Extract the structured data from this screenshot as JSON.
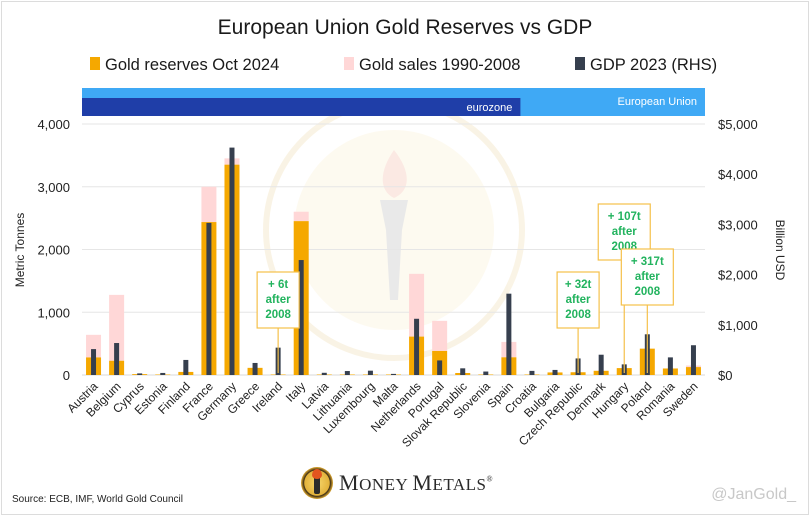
{
  "chart_data": {
    "type": "bar",
    "title": "European Union Gold Reserves vs GDP",
    "legend": [
      {
        "name": "Gold reserves Oct 2024",
        "color": "#f5a800"
      },
      {
        "name": "Gold sales 1990-2008",
        "color": "#ffd7d7"
      },
      {
        "name": "GDP 2023 (RHS)",
        "color": "#363f4e"
      }
    ],
    "legend_position": "top",
    "ylabel": "Metric Tonnes",
    "y2label": "Billion USD",
    "ylim": [
      0,
      4000
    ],
    "y2lim": [
      0,
      5000
    ],
    "yticks": [
      "0",
      "1,000",
      "2,000",
      "3,000",
      "4,000"
    ],
    "y2ticks": [
      "$0",
      "$1,000",
      "$2,000",
      "$3,000",
      "$4,000",
      "$5,000"
    ],
    "grid": true,
    "categories": [
      "Austria",
      "Belgium",
      "Cyprus",
      "Estonia",
      "Finland",
      "France",
      "Germany",
      "Greece",
      "Ireland",
      "Italy",
      "Latvia",
      "Lithuania",
      "Luxembourg",
      "Malta",
      "Netherlands",
      "Portugal",
      "Slovak Republic",
      "Slovenia",
      "Spain",
      "Croatia",
      "Bulgaria",
      "Czech Republic",
      "Denmark",
      "Hungary",
      "Poland",
      "Romania",
      "Sweden"
    ],
    "series": [
      {
        "name": "Gold reserves Oct 2024",
        "axis": "left",
        "stack": "gold",
        "values": [
          280,
          227,
          14,
          0,
          49,
          2437,
          3352,
          114,
          6,
          2452,
          7,
          6,
          2,
          0,
          612,
          383,
          32,
          3,
          282,
          0,
          41,
          44,
          67,
          110,
          420,
          104,
          126
        ]
      },
      {
        "name": "Gold sales 1990-2008",
        "axis": "left",
        "stack": "gold",
        "values": [
          360,
          1050,
          0,
          0,
          0,
          563,
          100,
          0,
          0,
          150,
          0,
          0,
          0,
          0,
          1000,
          480,
          0,
          0,
          245,
          0,
          0,
          0,
          0,
          0,
          0,
          0,
          25
        ]
      },
      {
        "name": "GDP 2023 (RHS)",
        "axis": "right",
        "values": [
          516,
          637,
          32,
          41,
          300,
          3030,
          4530,
          240,
          545,
          2290,
          44,
          79,
          86,
          22,
          1120,
          290,
          133,
          69,
          1620,
          82,
          101,
          330,
          404,
          212,
          811,
          351,
          593
        ]
      }
    ],
    "bands": [
      {
        "label": "European Union",
        "from": "Austria",
        "to": "Sweden",
        "color": "#3fa9f5"
      },
      {
        "label": "eurozone",
        "from": "Austria",
        "to": "Spain",
        "color": "#1f3ea8"
      }
    ],
    "annotations": [
      {
        "category": "Ireland",
        "lines": [
          "+ 6t",
          "after",
          "2008"
        ]
      },
      {
        "category": "Czech Republic",
        "lines": [
          "+ 32t",
          "after",
          "2008"
        ]
      },
      {
        "category": "Hungary",
        "lines": [
          "+ 107t",
          "after",
          "2008"
        ]
      },
      {
        "category": "Poland",
        "lines": [
          "+ 317t",
          "after",
          "2008"
        ]
      }
    ]
  },
  "footer": {
    "source": "Source: ECB, IMF, World Gold Council",
    "brand_first": "M",
    "brand_rest1": "ONEY ",
    "brand_second": "M",
    "brand_rest2": "ETALS",
    "brand_reg": "®",
    "handle": "@JanGold_"
  }
}
